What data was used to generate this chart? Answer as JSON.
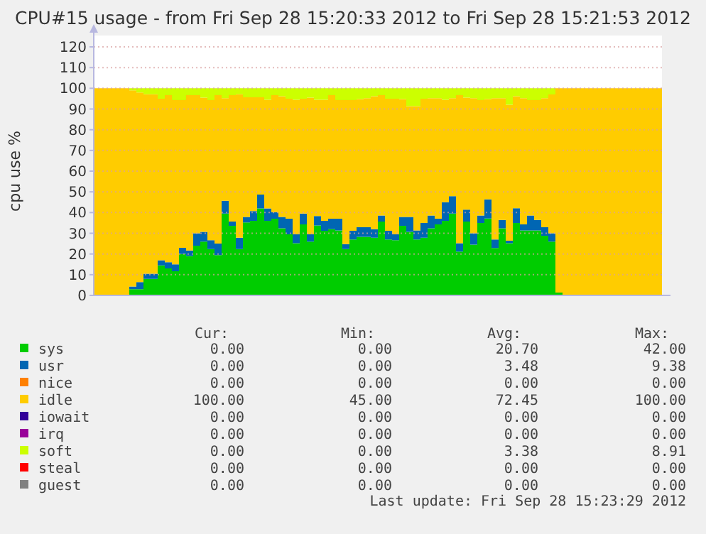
{
  "chart_data": {
    "type": "area",
    "stacked": true,
    "title": "CPU#15 usage - from Fri Sep 28 15:20:33 2012 to Fri Sep 28 15:21:53 2012",
    "ylabel": "cpu use %",
    "categories": [
      null,
      null,
      null,
      null,
      null,
      null,
      null,
      null,
      null,
      null,
      null,
      null,
      null,
      null,
      null,
      null,
      null,
      null,
      null,
      null,
      null,
      null,
      null,
      null,
      null,
      null,
      null,
      null,
      null,
      null,
      null,
      null,
      null,
      null,
      null,
      null,
      null,
      null,
      null,
      null,
      null,
      null,
      null,
      null,
      null,
      null,
      null,
      null,
      null,
      null,
      null,
      null,
      null,
      null,
      null,
      null,
      null,
      null,
      null,
      null,
      null,
      null,
      null,
      null,
      null,
      null,
      null,
      null,
      null,
      null,
      null,
      null,
      null,
      null,
      null,
      null,
      null,
      null,
      null,
      null
    ],
    "ylim": [
      0,
      120
    ],
    "yticks": [
      0,
      10,
      20,
      30,
      40,
      50,
      60,
      70,
      80,
      90,
      100,
      110,
      120
    ],
    "grid": "y",
    "legend": "bottom",
    "series": [
      {
        "name": "sys",
        "color": "#00cc00",
        "values": [
          0,
          0,
          0,
          0,
          0,
          3,
          3,
          8,
          8,
          14.5,
          13,
          11.7,
          20,
          19,
          24,
          26,
          22.4,
          19.5,
          39.5,
          33.6,
          22.4,
          35.2,
          36,
          42,
          36,
          37,
          32.4,
          29.5,
          25.2,
          34.3,
          26,
          33.8,
          31.2,
          32,
          31.4,
          22.4,
          27,
          28.3,
          28.3,
          27.9,
          35.7,
          27,
          26.7,
          33.6,
          30.7,
          27,
          27.9,
          32.4,
          34.3,
          36,
          39.5,
          21.2,
          35.7,
          24.5,
          35,
          37.1,
          22.9,
          32.4,
          25.2,
          35,
          31.4,
          31.4,
          31.4,
          28.8,
          26,
          1.4,
          0,
          0,
          0,
          0,
          0,
          0,
          0,
          0,
          0,
          0,
          0,
          0,
          0,
          0
        ]
      },
      {
        "name": "usr",
        "color": "#0066b3",
        "values": [
          0,
          0,
          0,
          0,
          0,
          1.3,
          3.4,
          2.5,
          2.5,
          2.5,
          3,
          3.3,
          3,
          2.7,
          6,
          4.7,
          4.3,
          5.5,
          6.2,
          2.1,
          5.5,
          2.7,
          4.7,
          6.7,
          6,
          3.2,
          5.5,
          7.5,
          4.3,
          5.2,
          3.5,
          4.5,
          4.8,
          5,
          5.6,
          2.4,
          4.2,
          4.6,
          4.6,
          4.1,
          2.9,
          4.2,
          2.8,
          4.3,
          7.2,
          4.4,
          7.1,
          6.2,
          2.7,
          9,
          8.4,
          4,
          5.7,
          5.5,
          3.6,
          9.3,
          4.1,
          4,
          1.2,
          7.1,
          2.9,
          7.2,
          5,
          4.1,
          4,
          0,
          0,
          0,
          0,
          0,
          0,
          0,
          0,
          0,
          0,
          0,
          0,
          0,
          0,
          0
        ]
      },
      {
        "name": "nice",
        "color": "#ff8000",
        "values": [
          null,
          null,
          null,
          null,
          null,
          null,
          null,
          null,
          null,
          null,
          null,
          null,
          null,
          null,
          null,
          null,
          null,
          null,
          null,
          null,
          null,
          null,
          null,
          null,
          null,
          null,
          null,
          null,
          null,
          null,
          null,
          null,
          null,
          null,
          null,
          null,
          null,
          null,
          null,
          null,
          null,
          null,
          null,
          null,
          null,
          null,
          null,
          null,
          null,
          null,
          null,
          null,
          null,
          null,
          null,
          null,
          null,
          null,
          null,
          null,
          null,
          null,
          null,
          null,
          null,
          null,
          null,
          null,
          null,
          null,
          null,
          null,
          null,
          null,
          null,
          null,
          null,
          null,
          null,
          null
        ]
      },
      {
        "name": "idle",
        "color": "#ffcc00",
        "values": [
          100,
          100,
          100,
          100,
          100,
          94.7,
          91.6,
          86.6,
          86.6,
          78,
          80.7,
          79.3,
          71.3,
          75,
          66.7,
          64.8,
          67.6,
          71.7,
          49.5,
          61,
          69.2,
          57.8,
          55,
          47,
          52.5,
          56.5,
          58.3,
          58,
          65,
          55.5,
          66,
          56.2,
          58.5,
          59.7,
          57.3,
          69.5,
          63.1,
          61.9,
          62.3,
          64.2,
          58.1,
          63.8,
          65.5,
          56.9,
          53.5,
          60,
          60,
          56.6,
          58.2,
          49.5,
          47.3,
          71.5,
          54.1,
          65.2,
          55.7,
          48.4,
          68.2,
          58.8,
          65.7,
          54.1,
          60.9,
          55.7,
          57.9,
          62.3,
          67,
          98.6,
          100,
          100,
          100,
          100,
          100,
          100,
          100,
          100,
          100,
          100,
          100,
          100,
          100,
          100
        ]
      },
      {
        "name": "iowait",
        "color": "#330099",
        "values": [
          null,
          null,
          null,
          null,
          null,
          null,
          null,
          null,
          null,
          null,
          null,
          null,
          null,
          null,
          null,
          null,
          null,
          null,
          null,
          null,
          null,
          null,
          null,
          null,
          null,
          null,
          null,
          null,
          null,
          null,
          null,
          null,
          null,
          null,
          null,
          null,
          null,
          null,
          null,
          null,
          null,
          null,
          null,
          null,
          null,
          null,
          null,
          null,
          null,
          null,
          null,
          null,
          null,
          null,
          null,
          null,
          null,
          null,
          null,
          null,
          null,
          null,
          null,
          null,
          null,
          null,
          null,
          null,
          null,
          null,
          null,
          null,
          null,
          null,
          null,
          null,
          null,
          null,
          null,
          null
        ]
      },
      {
        "name": "irq",
        "color": "#990099",
        "values": [
          null,
          null,
          null,
          null,
          null,
          null,
          null,
          null,
          null,
          null,
          null,
          null,
          null,
          null,
          null,
          null,
          null,
          null,
          null,
          null,
          null,
          null,
          null,
          null,
          null,
          null,
          null,
          null,
          null,
          null,
          null,
          null,
          null,
          null,
          null,
          null,
          null,
          null,
          null,
          null,
          null,
          null,
          null,
          null,
          null,
          null,
          null,
          null,
          null,
          null,
          null,
          null,
          null,
          null,
          null,
          null,
          null,
          null,
          null,
          null,
          null,
          null,
          null,
          null,
          null,
          null,
          null,
          null,
          null,
          null,
          null,
          null,
          null,
          null,
          null,
          null,
          null,
          null,
          null,
          null
        ]
      },
      {
        "name": "soft",
        "color": "#ccff00",
        "values": [
          0,
          0,
          0,
          0,
          0,
          1,
          2,
          2.9,
          2.9,
          5,
          3.3,
          5.7,
          5.7,
          3.3,
          3.3,
          4.5,
          5.7,
          3.3,
          4.8,
          3.3,
          2.9,
          4.3,
          4.3,
          4.3,
          5.5,
          3.3,
          3.8,
          5,
          5.5,
          5,
          4.5,
          5.5,
          5.5,
          3.3,
          5.7,
          5.7,
          5.7,
          5.2,
          4.8,
          3.8,
          3.3,
          5,
          5,
          5.2,
          8.6,
          8.6,
          5,
          4.8,
          4.8,
          5.5,
          4.8,
          3.3,
          4.5,
          4.8,
          5.7,
          5.2,
          4.8,
          4.8,
          7.9,
          3.8,
          4.8,
          5.7,
          5.7,
          4.8,
          3,
          0,
          0,
          0,
          0,
          0,
          0,
          0,
          0,
          0,
          0,
          0,
          0,
          0,
          0,
          0
        ]
      },
      {
        "name": "steal",
        "color": "#ff0000",
        "values": [
          null,
          null,
          null,
          null,
          null,
          null,
          null,
          null,
          null,
          null,
          null,
          null,
          null,
          null,
          null,
          null,
          null,
          null,
          null,
          null,
          null,
          null,
          null,
          null,
          null,
          null,
          null,
          null,
          null,
          null,
          null,
          null,
          null,
          null,
          null,
          null,
          null,
          null,
          null,
          null,
          null,
          null,
          null,
          null,
          null,
          null,
          null,
          null,
          null,
          null,
          null,
          null,
          null,
          null,
          null,
          null,
          null,
          null,
          null,
          null,
          null,
          null,
          null,
          null,
          null,
          null,
          null,
          null,
          null,
          null,
          null,
          null,
          null,
          null,
          null,
          null,
          null,
          null,
          null,
          null
        ]
      },
      {
        "name": "guest",
        "color": "#808080",
        "values": [
          null,
          null,
          null,
          null,
          null,
          null,
          null,
          null,
          null,
          null,
          null,
          null,
          null,
          null,
          null,
          null,
          null,
          null,
          null,
          null,
          null,
          null,
          null,
          null,
          null,
          null,
          null,
          null,
          null,
          null,
          null,
          null,
          null,
          null,
          null,
          null,
          null,
          null,
          null,
          null,
          null,
          null,
          null,
          null,
          null,
          null,
          null,
          null,
          null,
          null,
          null,
          null,
          null,
          null,
          null,
          null,
          null,
          null,
          null,
          null,
          null,
          null,
          null,
          null,
          null,
          null,
          null,
          null,
          null,
          null,
          null,
          null,
          null,
          null,
          null,
          null,
          null,
          null,
          null,
          null
        ]
      }
    ],
    "annotations": [
      "Cur:",
      "Min:",
      "Avg:",
      "Max:",
      "0.00",
      "0.00",
      "20.70",
      "42.00",
      "0.00",
      "0.00",
      "3.48",
      "9.38",
      "0.00",
      "0.00",
      "0.00",
      "0.00",
      "100.00",
      "45.00",
      "72.45",
      "100.00",
      "0.00",
      "0.00",
      "0.00",
      "0.00",
      "0.00",
      "0.00",
      "0.00",
      "0.00",
      "0.00",
      "0.00",
      "3.38",
      "8.91",
      "0.00",
      "0.00",
      "0.00",
      "0.00",
      "0.00",
      "0.00",
      "0.00",
      "0.00",
      "Last update: Fri Sep 28 15:23:29 2012"
    ]
  }
}
